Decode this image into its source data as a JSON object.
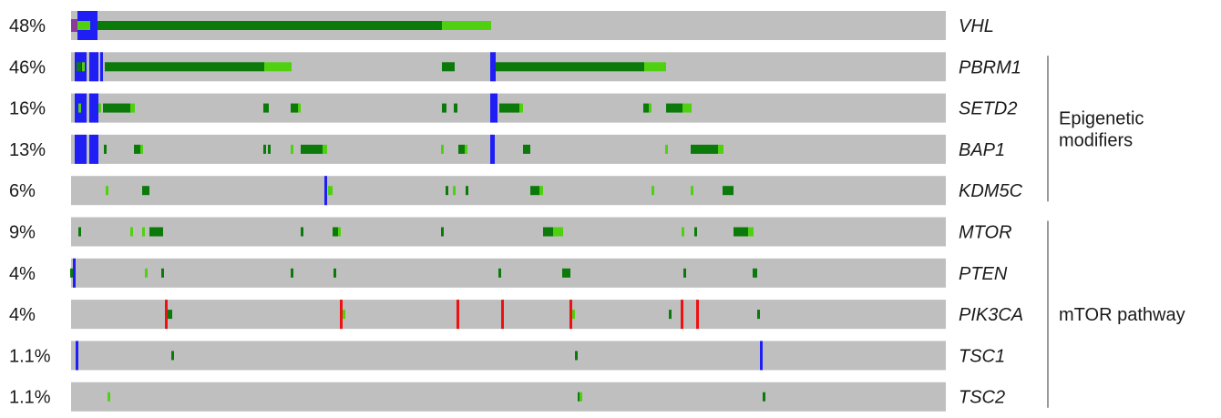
{
  "colors": {
    "track": "#bfbfbf",
    "dark_green": "#0b7a0b",
    "light_green": "#4fd111",
    "blue": "#1f1ff5",
    "red": "#ee1111",
    "purple": "#8b3a9b",
    "bracket": "#999999"
  },
  "tracks": [
    {
      "percent": "48%",
      "gene": "VHL"
    },
    {
      "percent": "46%",
      "gene": "PBRM1"
    },
    {
      "percent": "16%",
      "gene": "SETD2"
    },
    {
      "percent": "13%",
      "gene": "BAP1"
    },
    {
      "percent": "6%",
      "gene": "KDM5C"
    },
    {
      "percent": "9%",
      "gene": "MTOR"
    },
    {
      "percent": "4%",
      "gene": "PTEN"
    },
    {
      "percent": "4%",
      "gene": "PIK3CA"
    },
    {
      "percent": "1.1%",
      "gene": "TSC1"
    },
    {
      "percent": "1.1%",
      "gene": "TSC2"
    }
  ],
  "groups": [
    {
      "label_lines": [
        "Epigenetic",
        "modifiers"
      ],
      "first_track": 1,
      "last_track": 4
    },
    {
      "label_lines": [
        "mTOR pathway"
      ],
      "first_track": 5,
      "last_track": 9
    }
  ]
}
